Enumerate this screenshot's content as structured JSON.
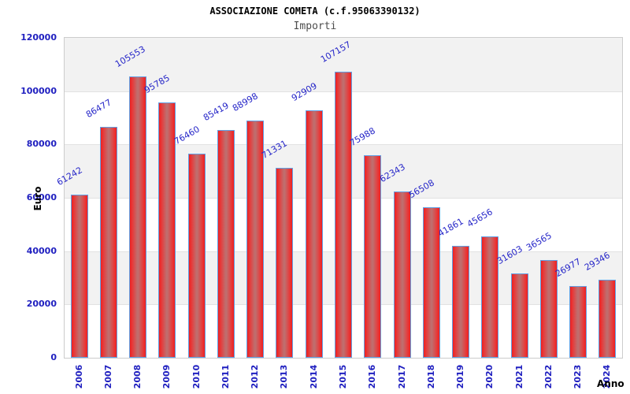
{
  "chart_data": {
    "type": "bar",
    "title": "ASSOCIAZIONE COMETA (c.f.95063390132)",
    "subtitle": "Importi",
    "xlabel": "Anno",
    "ylabel": "Euro",
    "categories": [
      "2006",
      "2007",
      "2008",
      "2009",
      "2010",
      "2011",
      "2012",
      "2013",
      "2014",
      "2015",
      "2016",
      "2017",
      "2018",
      "2019",
      "2020",
      "2021",
      "2022",
      "2023",
      "2024"
    ],
    "values": [
      61242,
      86477,
      105553,
      95785,
      76460,
      85419,
      88998,
      71331,
      92909,
      107157,
      75988,
      62343,
      56508,
      41861,
      45656,
      31603,
      36565,
      26977,
      29346
    ],
    "ylim": [
      0,
      120000
    ],
    "yticks": [
      0,
      20000,
      40000,
      60000,
      80000,
      100000,
      120000
    ],
    "grid": "horizontal gridlines every 20000 with alternating band shading",
    "legend": "none",
    "colors": {
      "bar_edge_red": "#ee2020",
      "bar_center_red": "#c06d6d",
      "bar_border_blue": "#61a0e4",
      "axis_text_blue": "#2020c0",
      "value_label_blue": "#2525c8",
      "band_gray": "#f2f2f2",
      "band_white": "#ffffff",
      "gridline_gray": "#e2e2e2",
      "plot_border_gray": "#cccccc",
      "title_black": "#000000",
      "subtitle_gray": "#4d4d4d"
    }
  }
}
